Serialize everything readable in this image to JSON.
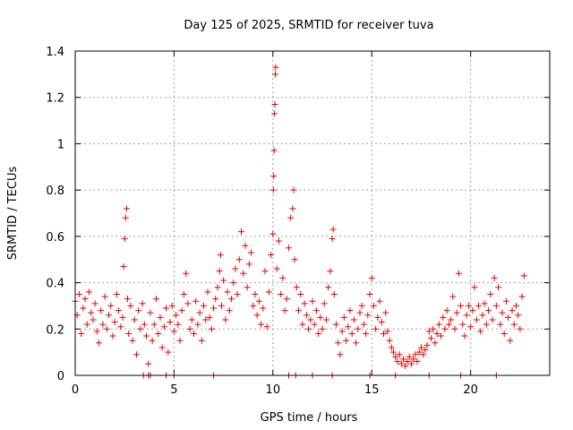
{
  "chart_data": {
    "type": "scatter",
    "title": "Day 125 of 2025, SRMTID for receiver tuva",
    "xlabel": "GPS time / hours",
    "ylabel": "SRMTID / TECUs",
    "xlim": [
      0,
      24
    ],
    "ylim": [
      0,
      1.4
    ],
    "xticks": [
      0,
      5,
      10,
      15,
      20
    ],
    "xtick_labels": [
      "0",
      "5",
      "10",
      "15",
      "20"
    ],
    "yticks": [
      0,
      0.2,
      0.4,
      0.6,
      0.8,
      1.0,
      1.2,
      1.4
    ],
    "ytick_labels": [
      "0",
      "0.2",
      "0.4",
      "0.6",
      "0.8",
      "1",
      "1.2",
      "1.4"
    ],
    "grid": true,
    "marker": "plus",
    "color": "#ee0000",
    "series": [
      {
        "name": "SRMTID",
        "points": [
          [
            0.0,
            0.32
          ],
          [
            0.1,
            0.26
          ],
          [
            0.2,
            0.35
          ],
          [
            0.3,
            0.18
          ],
          [
            0.4,
            0.29
          ],
          [
            0.5,
            0.33
          ],
          [
            0.6,
            0.22
          ],
          [
            0.7,
            0.36
          ],
          [
            0.8,
            0.27
          ],
          [
            0.9,
            0.24
          ],
          [
            1.0,
            0.31
          ],
          [
            1.1,
            0.19
          ],
          [
            1.2,
            0.14
          ],
          [
            1.3,
            0.28
          ],
          [
            1.4,
            0.22
          ],
          [
            1.5,
            0.34
          ],
          [
            1.6,
            0.2
          ],
          [
            1.7,
            0.26
          ],
          [
            1.8,
            0.3
          ],
          [
            1.9,
            0.17
          ],
          [
            2.0,
            0.23
          ],
          [
            2.1,
            0.35
          ],
          [
            2.2,
            0.28
          ],
          [
            2.3,
            0.21
          ],
          [
            2.4,
            0.25
          ],
          [
            2.45,
            0.47
          ],
          [
            2.5,
            0.59
          ],
          [
            2.55,
            0.68
          ],
          [
            2.6,
            0.72
          ],
          [
            2.65,
            0.33
          ],
          [
            2.7,
            0.18
          ],
          [
            2.8,
            0.3
          ],
          [
            2.9,
            0.15
          ],
          [
            3.0,
            0.24
          ],
          [
            3.1,
            0.09
          ],
          [
            3.2,
            0.28
          ],
          [
            3.3,
            0.2
          ],
          [
            3.4,
            0.31
          ],
          [
            3.5,
            0.22
          ],
          [
            3.6,
            0.17
          ],
          [
            3.7,
            0.05
          ],
          [
            3.8,
            0.27
          ],
          [
            3.9,
            0.15
          ],
          [
            4.0,
            0.22
          ],
          [
            4.1,
            0.33
          ],
          [
            4.2,
            0.18
          ],
          [
            4.3,
            0.25
          ],
          [
            4.4,
            0.12
          ],
          [
            4.5,
            0.21
          ],
          [
            4.6,
            0.29
          ],
          [
            4.7,
            0.1
          ],
          [
            4.8,
            0.23
          ],
          [
            4.9,
            0.3
          ],
          [
            5.0,
            0.19
          ],
          [
            5.1,
            0.26
          ],
          [
            5.2,
            0.22
          ],
          [
            5.3,
            0.15
          ],
          [
            5.4,
            0.28
          ],
          [
            5.5,
            0.35
          ],
          [
            5.6,
            0.44
          ],
          [
            5.7,
            0.31
          ],
          [
            5.8,
            0.2
          ],
          [
            5.9,
            0.24
          ],
          [
            6.0,
            0.18
          ],
          [
            6.1,
            0.32
          ],
          [
            6.2,
            0.22
          ],
          [
            6.3,
            0.27
          ],
          [
            6.4,
            0.15
          ],
          [
            6.5,
            0.3
          ],
          [
            6.6,
            0.24
          ],
          [
            6.7,
            0.36
          ],
          [
            6.8,
            0.25
          ],
          [
            6.9,
            0.2
          ],
          [
            7.0,
            0.29
          ],
          [
            7.1,
            0.33
          ],
          [
            7.2,
            0.38
          ],
          [
            7.3,
            0.45
          ],
          [
            7.35,
            0.52
          ],
          [
            7.4,
            0.3
          ],
          [
            7.5,
            0.41
          ],
          [
            7.6,
            0.24
          ],
          [
            7.7,
            0.36
          ],
          [
            7.8,
            0.28
          ],
          [
            7.9,
            0.33
          ],
          [
            8.0,
            0.4
          ],
          [
            8.1,
            0.46
          ],
          [
            8.2,
            0.35
          ],
          [
            8.3,
            0.5
          ],
          [
            8.4,
            0.62
          ],
          [
            8.5,
            0.44
          ],
          [
            8.6,
            0.56
          ],
          [
            8.7,
            0.38
          ],
          [
            8.8,
            0.48
          ],
          [
            8.9,
            0.53
          ],
          [
            9.0,
            0.3
          ],
          [
            9.1,
            0.35
          ],
          [
            9.2,
            0.26
          ],
          [
            9.3,
            0.32
          ],
          [
            9.4,
            0.22
          ],
          [
            9.5,
            0.29
          ],
          [
            9.6,
            0.45
          ],
          [
            9.7,
            0.21
          ],
          [
            9.8,
            0.36
          ],
          [
            9.9,
            0.52
          ],
          [
            10.0,
            0.61
          ],
          [
            10.02,
            0.8
          ],
          [
            10.04,
            0.86
          ],
          [
            10.06,
            0.97
          ],
          [
            10.08,
            1.13
          ],
          [
            10.1,
            1.17
          ],
          [
            10.12,
            1.3
          ],
          [
            10.14,
            1.33
          ],
          [
            10.2,
            0.46
          ],
          [
            10.3,
            0.58
          ],
          [
            10.4,
            0.35
          ],
          [
            10.5,
            0.42
          ],
          [
            10.6,
            0.28
          ],
          [
            10.7,
            0.33
          ],
          [
            10.8,
            0.55
          ],
          [
            10.9,
            0.68
          ],
          [
            11.0,
            0.72
          ],
          [
            11.05,
            0.8
          ],
          [
            11.1,
            0.5
          ],
          [
            11.2,
            0.38
          ],
          [
            11.3,
            0.28
          ],
          [
            11.4,
            0.35
          ],
          [
            11.5,
            0.22
          ],
          [
            11.6,
            0.31
          ],
          [
            11.7,
            0.26
          ],
          [
            11.8,
            0.2
          ],
          [
            11.9,
            0.24
          ],
          [
            12.0,
            0.32
          ],
          [
            12.1,
            0.22
          ],
          [
            12.2,
            0.28
          ],
          [
            12.3,
            0.18
          ],
          [
            12.4,
            0.25
          ],
          [
            12.5,
            0.2
          ],
          [
            12.6,
            0.31
          ],
          [
            12.7,
            0.24
          ],
          [
            12.8,
            0.38
          ],
          [
            12.9,
            0.45
          ],
          [
            13.0,
            0.59
          ],
          [
            13.05,
            0.63
          ],
          [
            13.1,
            0.35
          ],
          [
            13.2,
            0.22
          ],
          [
            13.3,
            0.14
          ],
          [
            13.4,
            0.09
          ],
          [
            13.5,
            0.19
          ],
          [
            13.6,
            0.25
          ],
          [
            13.7,
            0.15
          ],
          [
            13.8,
            0.21
          ],
          [
            13.9,
            0.28
          ],
          [
            14.0,
            0.18
          ],
          [
            14.1,
            0.24
          ],
          [
            14.2,
            0.14
          ],
          [
            14.3,
            0.2
          ],
          [
            14.4,
            0.27
          ],
          [
            14.5,
            0.3
          ],
          [
            14.6,
            0.22
          ],
          [
            14.7,
            0.18
          ],
          [
            14.8,
            0.26
          ],
          [
            14.9,
            0.35
          ],
          [
            15.0,
            0.42
          ],
          [
            15.1,
            0.3
          ],
          [
            15.2,
            0.2
          ],
          [
            15.3,
            0.25
          ],
          [
            15.4,
            0.32
          ],
          [
            15.5,
            0.23
          ],
          [
            15.6,
            0.18
          ],
          [
            15.7,
            0.27
          ],
          [
            15.8,
            0.19
          ],
          [
            15.9,
            0.15
          ],
          [
            16.0,
            0.12
          ],
          [
            16.1,
            0.1
          ],
          [
            16.2,
            0.08
          ],
          [
            16.3,
            0.06
          ],
          [
            16.4,
            0.09
          ],
          [
            16.5,
            0.05
          ],
          [
            16.6,
            0.07
          ],
          [
            16.7,
            0.04
          ],
          [
            16.8,
            0.06
          ],
          [
            16.9,
            0.08
          ],
          [
            17.0,
            0.05
          ],
          [
            17.1,
            0.07
          ],
          [
            17.2,
            0.09
          ],
          [
            17.3,
            0.06
          ],
          [
            17.4,
            0.1
          ],
          [
            17.5,
            0.12
          ],
          [
            17.6,
            0.09
          ],
          [
            17.7,
            0.11
          ],
          [
            17.8,
            0.13
          ],
          [
            17.9,
            0.19
          ],
          [
            18.0,
            0.16
          ],
          [
            18.1,
            0.2
          ],
          [
            18.2,
            0.14
          ],
          [
            18.3,
            0.18
          ],
          [
            18.4,
            0.22
          ],
          [
            18.5,
            0.17
          ],
          [
            18.6,
            0.25
          ],
          [
            18.7,
            0.2
          ],
          [
            18.8,
            0.28
          ],
          [
            18.9,
            0.22
          ],
          [
            19.0,
            0.24
          ],
          [
            19.1,
            0.34
          ],
          [
            19.2,
            0.2
          ],
          [
            19.3,
            0.27
          ],
          [
            19.4,
            0.44
          ],
          [
            19.5,
            0.3
          ],
          [
            19.6,
            0.22
          ],
          [
            19.7,
            0.17
          ],
          [
            19.8,
            0.26
          ],
          [
            19.9,
            0.3
          ],
          [
            20.0,
            0.21
          ],
          [
            20.1,
            0.28
          ],
          [
            20.2,
            0.38
          ],
          [
            20.3,
            0.24
          ],
          [
            20.4,
            0.3
          ],
          [
            20.5,
            0.19
          ],
          [
            20.6,
            0.26
          ],
          [
            20.7,
            0.31
          ],
          [
            20.8,
            0.22
          ],
          [
            20.9,
            0.28
          ],
          [
            21.0,
            0.35
          ],
          [
            21.1,
            0.24
          ],
          [
            21.2,
            0.42
          ],
          [
            21.3,
            0.3
          ],
          [
            21.4,
            0.38
          ],
          [
            21.5,
            0.22
          ],
          [
            21.6,
            0.27
          ],
          [
            21.7,
            0.18
          ],
          [
            21.8,
            0.32
          ],
          [
            21.9,
            0.25
          ],
          [
            22.0,
            0.15
          ],
          [
            22.1,
            0.28
          ],
          [
            22.2,
            0.22
          ],
          [
            22.3,
            0.3
          ],
          [
            22.4,
            0.26
          ],
          [
            22.5,
            0.2
          ],
          [
            22.6,
            0.34
          ],
          [
            22.7,
            0.43
          ]
        ]
      }
    ],
    "zero_points_x": [
      3.45,
      3.7,
      3.8,
      4.6,
      5.0,
      7.0,
      10.8,
      11.15,
      12.0,
      13.0,
      14.9,
      16.2,
      17.9,
      19.5,
      21.3
    ]
  }
}
